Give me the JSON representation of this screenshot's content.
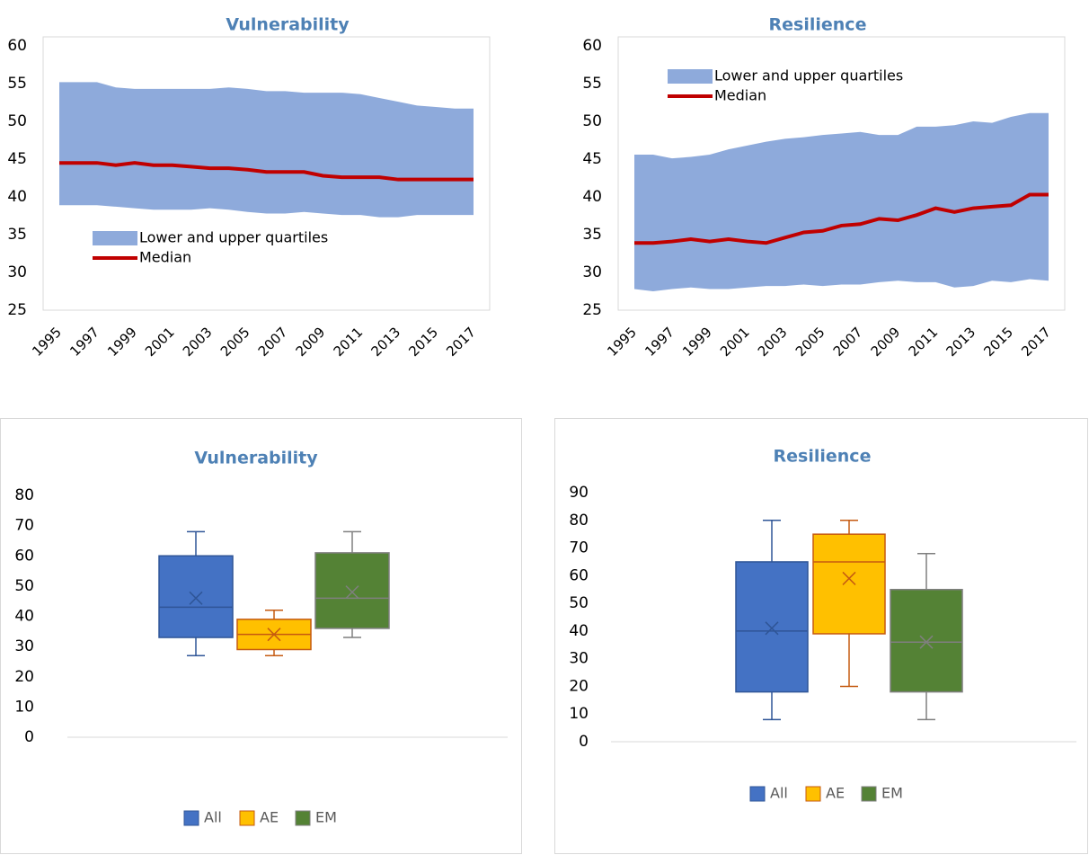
{
  "chart_data": [
    {
      "type": "area",
      "title": "Vulnerability",
      "categories": [
        "1995",
        null,
        "1997",
        null,
        "1999",
        null,
        "2001",
        null,
        "2003",
        null,
        "2005",
        null,
        "2007",
        null,
        "2009",
        null,
        "2011",
        null,
        "2013",
        null,
        "2015",
        null,
        "2017"
      ],
      "series": [
        {
          "name": "Lower and upper quartiles",
          "color": "#8eaadb",
          "lower": [
            38.9,
            38.9,
            38.9,
            38.7,
            38.5,
            38.3,
            38.3,
            38.3,
            38.5,
            38.3,
            38.0,
            37.8,
            37.8,
            38.0,
            37.8,
            37.6,
            37.6,
            37.3,
            37.3,
            37.6,
            37.6,
            37.6,
            37.6
          ],
          "upper": [
            55.2,
            55.2,
            55.2,
            54.5,
            54.3,
            54.3,
            54.3,
            54.3,
            54.3,
            54.5,
            54.3,
            54.0,
            54.0,
            53.8,
            53.8,
            53.8,
            53.6,
            53.1,
            52.6,
            52.1,
            51.9,
            51.7,
            51.7
          ]
        },
        {
          "name": "Median",
          "color": "#c00000",
          "values": [
            44.5,
            44.5,
            44.5,
            44.2,
            44.5,
            44.2,
            44.2,
            44.0,
            43.8,
            43.8,
            43.6,
            43.3,
            43.3,
            43.3,
            42.8,
            42.6,
            42.6,
            42.6,
            42.3,
            42.3,
            42.3,
            42.3,
            42.3
          ]
        }
      ],
      "ylim": [
        25,
        60
      ],
      "yticks": [
        25,
        30,
        35,
        40,
        45,
        50,
        55,
        60
      ],
      "legend": "lower left"
    },
    {
      "type": "area",
      "title": "Resilience",
      "categories": [
        "1995",
        null,
        "1997",
        null,
        "1999",
        null,
        "2001",
        null,
        "2003",
        null,
        "2005",
        null,
        "2007",
        null,
        "2009",
        null,
        "2011",
        null,
        "2013",
        null,
        "2015",
        null,
        "2017"
      ],
      "series": [
        {
          "name": "Lower and upper quartiles",
          "color": "#8eaadb",
          "lower": [
            27.8,
            27.5,
            27.8,
            28.0,
            27.8,
            27.8,
            28.0,
            28.2,
            28.2,
            28.4,
            28.2,
            28.4,
            28.4,
            28.7,
            28.9,
            28.7,
            28.7,
            28.0,
            28.2,
            28.9,
            28.7,
            29.1,
            28.9
          ],
          "upper": [
            45.6,
            45.6,
            45.1,
            45.3,
            45.6,
            46.3,
            46.8,
            47.3,
            47.7,
            47.9,
            48.2,
            48.4,
            48.6,
            48.2,
            48.2,
            49.3,
            49.3,
            49.5,
            50.0,
            49.8,
            50.6,
            51.1,
            51.1
          ]
        },
        {
          "name": "Median",
          "color": "#c00000",
          "values": [
            33.9,
            33.9,
            34.1,
            34.4,
            34.1,
            34.4,
            34.1,
            33.9,
            34.6,
            35.3,
            35.5,
            36.2,
            36.4,
            37.1,
            36.9,
            37.6,
            38.5,
            38.0,
            38.5,
            38.7,
            38.9,
            40.3,
            40.3
          ]
        }
      ],
      "ylim": [
        25,
        60
      ],
      "yticks": [
        25,
        30,
        35,
        40,
        45,
        50,
        55,
        60
      ],
      "legend": "upper left"
    },
    {
      "type": "box",
      "title": "Vulnerability",
      "series": [
        {
          "name": "All",
          "color": "#4472c4",
          "line_color": "#2f5597",
          "min": 27,
          "q1": 33,
          "median": 43,
          "q3": 60,
          "max": 68,
          "mean": 46
        },
        {
          "name": "AE",
          "color": "#ffc000",
          "line_color": "#c55a11",
          "min": 27,
          "q1": 29,
          "median": 34,
          "q3": 39,
          "max": 42,
          "mean": 34
        },
        {
          "name": "EM",
          "color": "#548235",
          "line_color": "#7f7f7f",
          "min": 33,
          "q1": 36,
          "median": 46,
          "q3": 61,
          "max": 68,
          "mean": 48
        }
      ],
      "ylim": [
        0,
        80
      ],
      "yticks": [
        0,
        10,
        20,
        30,
        40,
        50,
        60,
        70,
        80
      ],
      "legend": "bottom"
    },
    {
      "type": "box",
      "title": "Resilience",
      "series": [
        {
          "name": "All",
          "color": "#4472c4",
          "line_color": "#2f5597",
          "min": 8,
          "q1": 18,
          "median": 40,
          "q3": 65,
          "max": 80,
          "mean": 41
        },
        {
          "name": "AE",
          "color": "#ffc000",
          "line_color": "#c55a11",
          "min": 20,
          "q1": 39,
          "median": 65,
          "q3": 75,
          "max": 80,
          "mean": 59
        },
        {
          "name": "EM",
          "color": "#548235",
          "line_color": "#7f7f7f",
          "min": 8,
          "q1": 18,
          "median": 36,
          "q3": 55,
          "max": 68,
          "mean": 36
        }
      ],
      "ylim": [
        0,
        90
      ],
      "yticks": [
        0,
        10,
        20,
        30,
        40,
        50,
        60,
        70,
        80,
        90
      ],
      "legend": "bottom"
    }
  ]
}
